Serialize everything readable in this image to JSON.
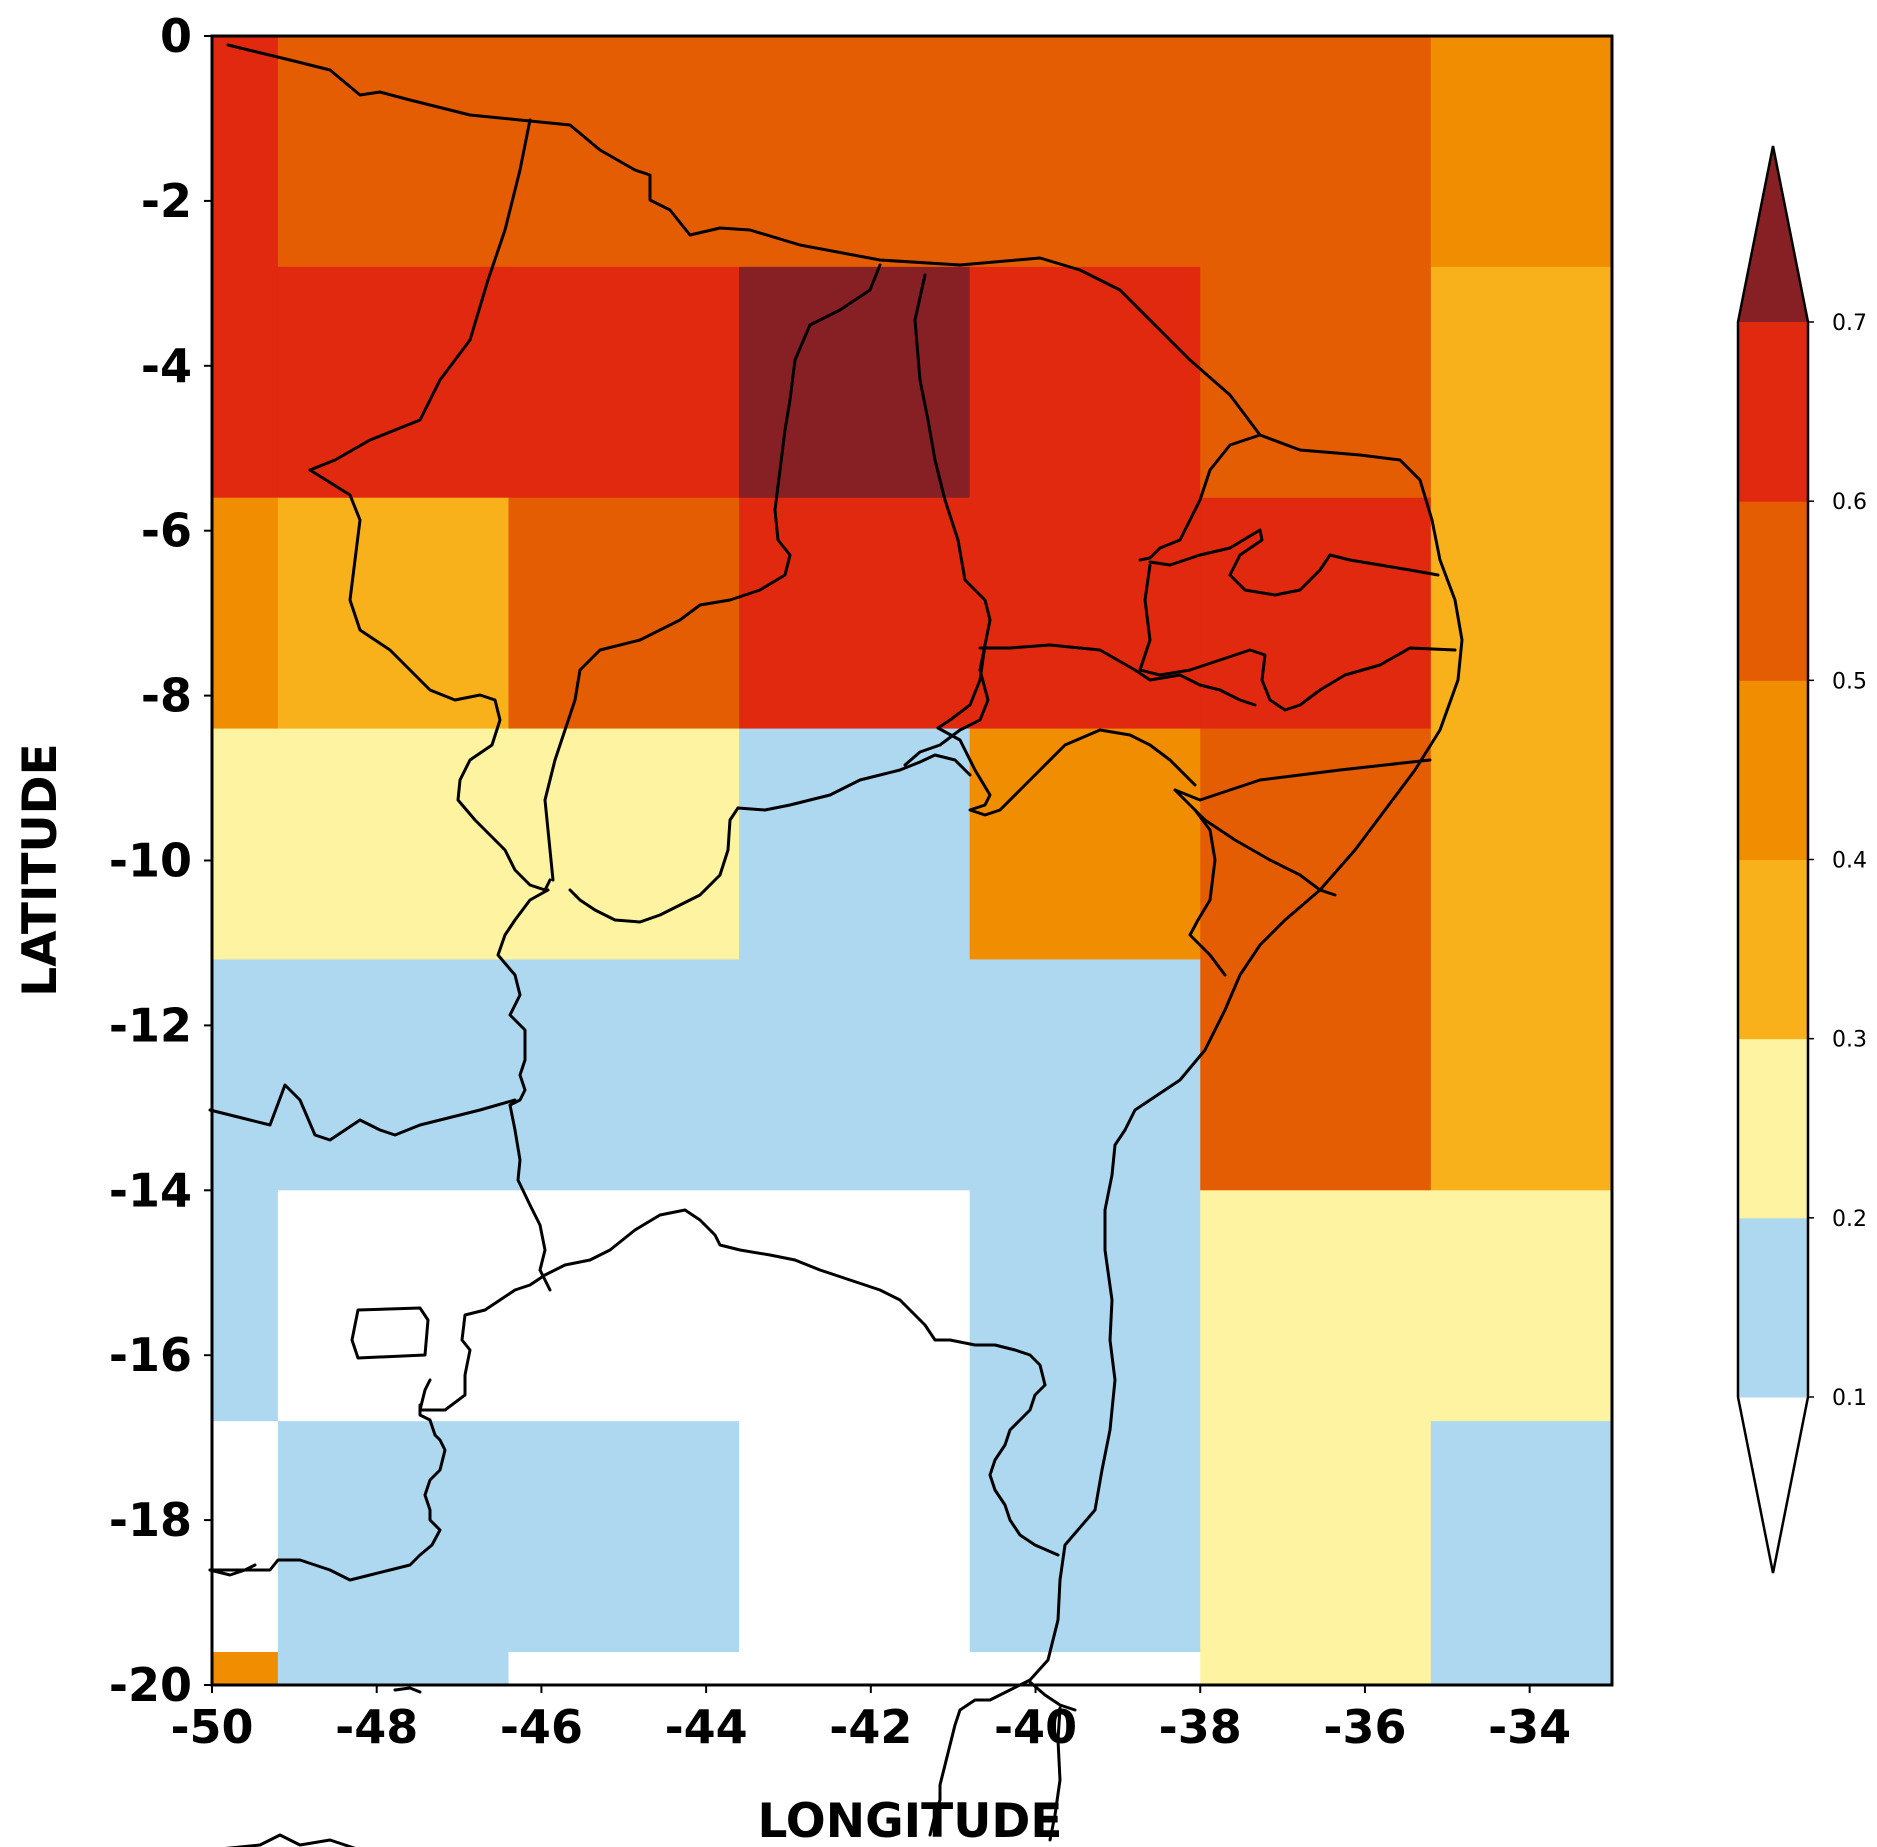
{
  "chart_data": {
    "type": "heatmap",
    "title": "",
    "xlabel": "LONGITUDE",
    "ylabel": "LATITUDE",
    "xlim": [
      -50,
      -33
    ],
    "ylim": [
      -20,
      0
    ],
    "xticks": [
      "-50",
      "-48",
      "-46",
      "-44",
      "-42",
      "-40",
      "-38",
      "-36",
      "-34"
    ],
    "yticks": [
      "0",
      "-2",
      "-4",
      "-6",
      "-8",
      "-10",
      "-12",
      "-14",
      "-16",
      "-18",
      "-20"
    ],
    "lon_edges": [
      -50,
      -49.2,
      -46.4,
      -43.6,
      -40.8,
      -38.0,
      -35.2,
      -33
    ],
    "lat_edges": [
      0,
      -2.8,
      -5.6,
      -8.4,
      -11.2,
      -14.0,
      -16.8,
      -19.6,
      -20
    ],
    "values": [
      [
        0.65,
        0.55,
        0.55,
        0.55,
        0.55,
        0.55,
        0.45
      ],
      [
        0.65,
        0.65,
        0.65,
        0.75,
        0.65,
        0.55,
        0.35
      ],
      [
        0.45,
        0.35,
        0.55,
        0.65,
        0.65,
        0.65,
        0.35
      ],
      [
        0.25,
        0.25,
        0.25,
        0.15,
        0.45,
        0.55,
        0.35
      ],
      [
        0.15,
        0.15,
        0.15,
        0.15,
        0.15,
        0.55,
        0.35
      ],
      [
        0.15,
        0.05,
        0.05,
        0.05,
        0.15,
        0.25,
        0.25
      ],
      [
        0.05,
        0.15,
        0.15,
        0.05,
        0.15,
        0.25,
        0.15
      ],
      [
        0.45,
        0.15,
        0.05,
        0.05,
        0.05,
        0.25,
        0.15
      ]
    ],
    "colorbar": {
      "ticks": [
        "0.1",
        "0.2",
        "0.3",
        "0.4",
        "0.5",
        "0.6",
        "0.7"
      ],
      "levels": [
        0.1,
        0.2,
        0.3,
        0.4,
        0.5,
        0.6,
        0.7
      ],
      "colors": [
        "#aed8f0",
        "#fef3a0",
        "#f8b11a",
        "#f08d00",
        "#e55d03",
        "#e0290e"
      ],
      "under_color": "#ffffff",
      "over_color": "#862024",
      "extend": "both"
    }
  }
}
